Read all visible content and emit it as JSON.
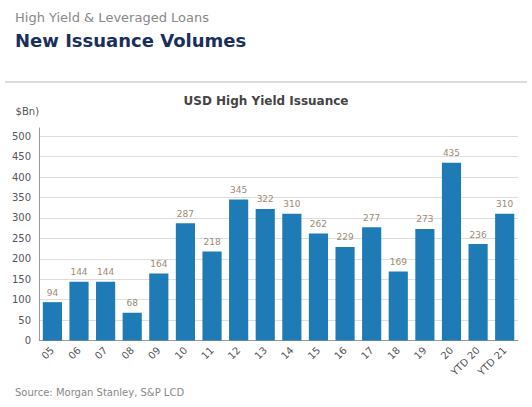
{
  "chart_data": {
    "type": "bar",
    "title": "New Issuance Volumes",
    "subtitle": "High Yield & Leveraged Loans",
    "chart_title": "USD High Yield Issuance",
    "ylabel": "$Bn)",
    "source": "Source: Morgan Stanley, S&P LCD",
    "categories": [
      "05",
      "06",
      "07",
      "08",
      "09",
      "10",
      "11",
      "12",
      "13",
      "14",
      "15",
      "16",
      "17",
      "18",
      "19",
      "20",
      "YTD 20",
      "YTD 21"
    ],
    "values": [
      94,
      144,
      144,
      68,
      164,
      287,
      218,
      345,
      322,
      310,
      262,
      229,
      277,
      169,
      273,
      435,
      236,
      310
    ],
    "color": "#1e7bb5",
    "ylim": [
      0,
      520
    ],
    "yticks": [
      0,
      50,
      100,
      150,
      200,
      250,
      300,
      350,
      400,
      450,
      500
    ],
    "grid": true,
    "data_labels": true
  }
}
